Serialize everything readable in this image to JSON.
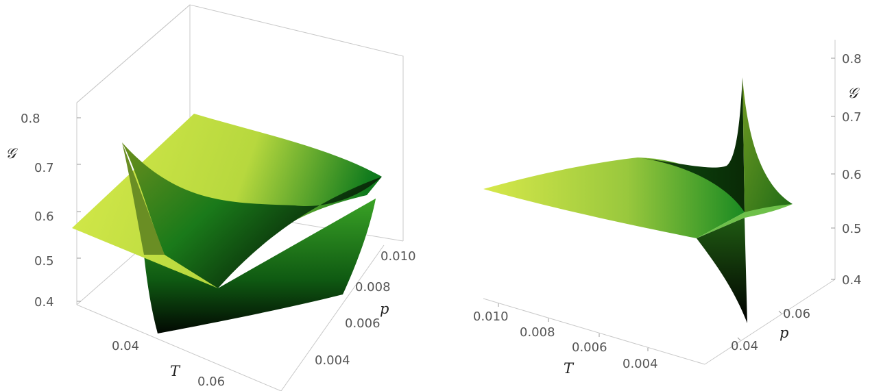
{
  "chart_data": [
    {
      "type": "surface3d",
      "title": "",
      "axes": {
        "T": {
          "label": "T",
          "ticks": [
            "0.04",
            "0.06"
          ]
        },
        "p": {
          "label": "p",
          "ticks": [
            "0.004",
            "0.006",
            "0.008",
            "0.010"
          ]
        },
        "G": {
          "label": "𝒢",
          "ticks": [
            "0.4",
            "0.5",
            "0.6",
            "0.7",
            "0.8"
          ],
          "range": [
            0.4,
            0.8
          ]
        }
      },
      "surface_colors": [
        "#000000",
        "#0b6e1b",
        "#d7e84a"
      ]
    },
    {
      "type": "surface3d",
      "title": "",
      "axes": {
        "T": {
          "label": "T",
          "ticks": [
            "0.010",
            "0.008",
            "0.006",
            "0.004"
          ]
        },
        "p": {
          "label": "p",
          "ticks": [
            "0.04",
            "0.06"
          ]
        },
        "G": {
          "label": "𝒢",
          "ticks": [
            "0.4",
            "0.5",
            "0.6",
            "0.7",
            "0.8"
          ],
          "range": [
            0.4,
            0.8
          ]
        }
      },
      "surface_colors": [
        "#000000",
        "#0b6e1b",
        "#d7e84a"
      ]
    }
  ]
}
